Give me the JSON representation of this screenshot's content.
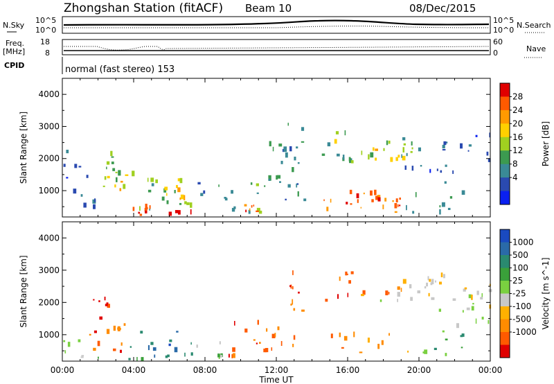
{
  "header": {
    "station": "Zhongshan Station (fitACF)",
    "beam": "Beam 10",
    "date": "08/Dec/2015"
  },
  "top_panels": {
    "nsky_label": "N.Sky",
    "nsky_ticks": [
      "10^5",
      "10^0"
    ],
    "nsearch_label": "N.Search",
    "freq_label_1": "Freq.",
    "freq_label_2": "[MHz]",
    "freq_ticks": [
      "18",
      "8"
    ],
    "nave_label": "Nave",
    "nave_ticks": [
      "60",
      "0"
    ],
    "cpid_label": "CPID",
    "cpid_text": "normal (fast stereo) 153"
  },
  "chart_data": [
    {
      "type": "heatmap",
      "title": "",
      "ylabel": "Slant Range [km]",
      "xlabel": "",
      "ylim": [
        180,
        4500
      ],
      "yticks": [
        "1000",
        "2000",
        "3000",
        "4000"
      ],
      "colorbar": {
        "label": "Power [dB]",
        "ticks": [
          "28",
          "24",
          "20",
          "16",
          "12",
          "8",
          "4"
        ],
        "colors": [
          "#e00000",
          "#ff5a00",
          "#ff9a00",
          "#ffd000",
          "#a0d020",
          "#3c9a50",
          "#3a8a96",
          "#2a4ab0",
          "#0a20f0"
        ]
      },
      "regions": [
        {
          "t0": 0.9,
          "t1": 2.1,
          "r0": 200,
          "r1": 1500,
          "c": 6
        },
        {
          "t0": 1.4,
          "t1": 3.6,
          "r0": 900,
          "r1": 1400,
          "c": 3
        },
        {
          "t0": 2.2,
          "t1": 3.2,
          "r0": 1600,
          "r1": 2100,
          "c": 5
        },
        {
          "t0": 2.6,
          "t1": 4.2,
          "r0": 900,
          "r1": 1700,
          "c": 4
        },
        {
          "t0": 3.5,
          "t1": 5.6,
          "r0": 180,
          "r1": 450,
          "c": 1
        },
        {
          "t0": 4.0,
          "t1": 7.2,
          "r0": 250,
          "r1": 1200,
          "c": 5
        },
        {
          "t0": 4.6,
          "t1": 6.6,
          "r0": 1000,
          "r1": 1300,
          "c": 4
        },
        {
          "t0": 5.2,
          "t1": 7.0,
          "r0": 600,
          "r1": 1100,
          "c": 3
        },
        {
          "t0": 7.5,
          "t1": 9.5,
          "r0": 300,
          "r1": 1200,
          "c": 6
        },
        {
          "t0": 9.5,
          "t1": 11.6,
          "r0": 200,
          "r1": 1600,
          "c": 5
        },
        {
          "t0": 10.0,
          "t1": 11.0,
          "r0": 300,
          "r1": 600,
          "c": 1
        },
        {
          "t0": 11.5,
          "t1": 13.6,
          "r0": 400,
          "r1": 2600,
          "c": 6
        },
        {
          "t0": 12.6,
          "t1": 13.6,
          "r0": 1800,
          "r1": 3100,
          "c": 6
        },
        {
          "t0": 14.5,
          "t1": 16.5,
          "r0": 1700,
          "r1": 2900,
          "c": 5
        },
        {
          "t0": 15.2,
          "t1": 19.6,
          "r0": 1600,
          "r1": 2500,
          "c": 4
        },
        {
          "t0": 16.0,
          "t1": 19.6,
          "r0": 1900,
          "r1": 2300,
          "c": 3
        },
        {
          "t0": 19.0,
          "t1": 21.6,
          "r0": 1500,
          "r1": 2600,
          "c": 6
        },
        {
          "t0": 20.0,
          "t1": 22.0,
          "r0": 1200,
          "r1": 1800,
          "c": 7
        },
        {
          "t0": 14.5,
          "t1": 19.2,
          "r0": 300,
          "r1": 1000,
          "c": 2
        },
        {
          "t0": 15.2,
          "t1": 18.6,
          "r0": 500,
          "r1": 900,
          "c": 1
        },
        {
          "t0": 17.3,
          "t1": 19.0,
          "r0": 400,
          "r1": 800,
          "c": 0
        },
        {
          "t0": 19.0,
          "t1": 22.5,
          "r0": 200,
          "r1": 900,
          "c": 6
        },
        {
          "t0": 22.0,
          "t1": 24.0,
          "r0": 1800,
          "r1": 2700,
          "c": 7
        },
        {
          "t0": 0.0,
          "t1": 1.0,
          "r0": 900,
          "r1": 2200,
          "c": 7
        },
        {
          "t0": 0.2,
          "t1": 12.0,
          "r0": 180,
          "r1": 320,
          "c": 0
        }
      ]
    },
    {
      "type": "heatmap",
      "title": "",
      "ylabel": "Slant Range [km]",
      "xlabel": "Time UT",
      "xticks": [
        "00:00",
        "04:00",
        "08:00",
        "12:00",
        "16:00",
        "20:00",
        "00:00"
      ],
      "xlim": [
        0,
        24
      ],
      "ylim": [
        180,
        4500
      ],
      "yticks": [
        "1000",
        "2000",
        "3000",
        "4000"
      ],
      "colorbar": {
        "label": "Velocity [m s^-1]",
        "ticks": [
          "1000",
          "500",
          "100",
          "25",
          "-25",
          "-100",
          "-500",
          "-1000"
        ],
        "colors": [
          "#1a4ac0",
          "#2a6aa8",
          "#2a8a70",
          "#3aa03a",
          "#7ad040",
          "#c8c8c8",
          "#ffb000",
          "#ff8c00",
          "#ff5a00",
          "#e00000"
        ]
      },
      "regions": [
        {
          "t0": 1.2,
          "t1": 2.6,
          "r0": 1700,
          "r1": 2100,
          "c": 9
        },
        {
          "t0": 1.5,
          "t1": 3.5,
          "r0": 400,
          "r1": 1500,
          "c": 8
        },
        {
          "t0": 2.4,
          "t1": 4.0,
          "r0": 600,
          "r1": 1300,
          "c": 7
        },
        {
          "t0": 3.5,
          "t1": 6.5,
          "r0": 400,
          "r1": 1100,
          "c": 1
        },
        {
          "t0": 5.0,
          "t1": 7.4,
          "r0": 250,
          "r1": 800,
          "c": 2
        },
        {
          "t0": 7.5,
          "t1": 9.5,
          "r0": 250,
          "r1": 800,
          "c": 4
        },
        {
          "t0": 9.2,
          "t1": 11.2,
          "r0": 250,
          "r1": 1400,
          "c": 8
        },
        {
          "t0": 11.0,
          "t1": 13.0,
          "r0": 400,
          "r1": 2200,
          "c": 7
        },
        {
          "t0": 12.4,
          "t1": 13.6,
          "r0": 1600,
          "r1": 3000,
          "c": 8
        },
        {
          "t0": 14.6,
          "t1": 16.5,
          "r0": 1900,
          "r1": 3000,
          "c": 8
        },
        {
          "t0": 15.0,
          "t1": 19.0,
          "r0": 2100,
          "r1": 2500,
          "c": 7
        },
        {
          "t0": 17.8,
          "t1": 21.5,
          "r0": 2000,
          "r1": 2700,
          "c": 5
        },
        {
          "t0": 20.0,
          "t1": 24.0,
          "r0": 1800,
          "r1": 2800,
          "c": 5
        },
        {
          "t0": 15.0,
          "t1": 19.6,
          "r0": 400,
          "r1": 1000,
          "c": 7
        },
        {
          "t0": 19.5,
          "t1": 22.5,
          "r0": 300,
          "r1": 1100,
          "c": 3
        },
        {
          "t0": 21.0,
          "t1": 24.0,
          "r0": 1100,
          "r1": 1800,
          "c": 5
        },
        {
          "t0": 22.5,
          "t1": 24.0,
          "r0": 2000,
          "r1": 2600,
          "c": 5
        },
        {
          "t0": 0.0,
          "t1": 1.2,
          "r0": 250,
          "r1": 800,
          "c": 4
        },
        {
          "t0": 0.0,
          "t1": 12.0,
          "r0": 180,
          "r1": 320,
          "c": 3
        }
      ]
    }
  ]
}
